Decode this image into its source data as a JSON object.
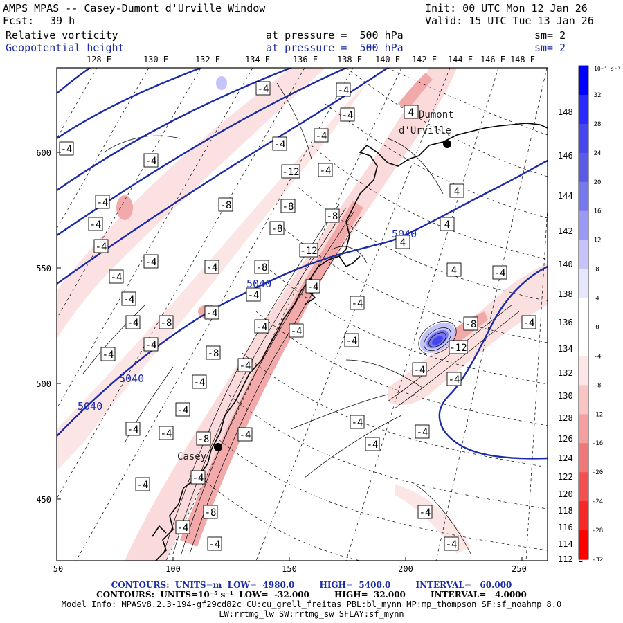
{
  "header": {
    "title": "AMPS MPAS -- Casey-Dumont d'Urville Window",
    "init": "Init: 00 UTC Mon 12 Jan 26",
    "fcst_label": "Fcst:",
    "fcst_value": "39 h",
    "valid": "Valid: 15 UTC Tue 13 Jan 26",
    "field1_name": "Relative vorticity",
    "field1_level": "at pressure =  500 hPa",
    "field1_sm": "sm= 2",
    "field2_name": "Geopotential height",
    "field2_level": "at pressure =  500 hPa",
    "field2_sm": "sm= 2"
  },
  "map": {
    "lon_top_labels": [
      "128 E",
      "130 E",
      "132 E",
      "134 E",
      "136 E",
      "138 E",
      "140 E",
      "142 E",
      "144 E",
      "146 E",
      "148 E"
    ],
    "lon_right_labels": [
      "148 E",
      "146 E",
      "144 E",
      "142 E",
      "140 E",
      "138 E",
      "136 E",
      "134 E",
      "132 E",
      "130 E",
      "128 E",
      "126 E",
      "124 E",
      "122 E",
      "120 E",
      "118 E",
      "116 E",
      "114 E",
      "112 E"
    ],
    "x_ticks": [
      "50",
      "100",
      "150",
      "200",
      "250"
    ],
    "y_ticks": [
      "600",
      "550",
      "500",
      "450"
    ],
    "stations": [
      {
        "name": "Dumont d'Urville",
        "label1": "Dumont",
        "label2": "d'Urville"
      },
      {
        "name": "Casey",
        "label1": "Casey"
      }
    ],
    "height_labels": [
      "5040",
      "5040",
      "5040",
      "5040"
    ],
    "vorticity_labels": [
      "-4",
      "-4",
      "-4",
      "-4",
      "-4",
      "-4",
      "-4",
      "-8",
      "-8",
      "-12",
      "-8",
      "-4",
      "-4",
      "-4",
      "-4",
      "-4",
      "-8",
      "-4",
      "-4",
      "-4",
      "-8",
      "-12",
      "-4",
      "-4",
      "-4",
      "-4",
      "-4",
      "-4",
      "-8",
      "-4",
      "-4",
      "-4",
      "-8",
      "-4",
      "-4",
      "-4",
      "-4",
      "-4",
      "-8",
      "-4",
      "4",
      "4",
      "4",
      "4",
      "4",
      "-4",
      "-8",
      "-12",
      "-4",
      "-4",
      "-4",
      "-4",
      "-4",
      "-4",
      "-4",
      "-4",
      "-4",
      "-8",
      "-4"
    ]
  },
  "colorbar": {
    "unit_label": "10⁻⁵ s⁻¹",
    "ticks": [
      "32",
      "28",
      "24",
      "20",
      "16",
      "12",
      "8",
      "4",
      "0",
      "-4",
      "-8",
      "-12",
      "-16",
      "-20",
      "-24",
      "-28",
      "-32"
    ],
    "colors": [
      "#0000ff",
      "#2a2aff",
      "#4646ee",
      "#5a5ae6",
      "#7878ee",
      "#9a9af4",
      "#c4c4fa",
      "#e6e6ff",
      "#ffffff",
      "#ffffff",
      "#ffe6e6",
      "#f8c4c4",
      "#f4a0a0",
      "#f07878",
      "#f45050",
      "#f82828",
      "#ff0000"
    ]
  },
  "footer": {
    "line1_a": "CONTOURS:  UNITS=m  LOW=  4980.0",
    "line1_b": "HIGH=  5400.0",
    "line1_c": "INTERVAL=   60.000",
    "line2_a": "CONTOURS:  UNITS=10⁻⁵ s⁻¹  LOW=  -32.000",
    "line2_b": "HIGH=  32.000",
    "line2_c": "INTERVAL=   4.0000",
    "line3": "Model Info: MPASv8.2.3-194-gf29cd82c CU:cu_grell_freitas PBL:bl_mynn MP:mp_thompson SF:sf_noahmp 8.0",
    "line4": "LW:rrtmg_lw SW:rrtmg_sw SFLAY:sf_mynn"
  }
}
